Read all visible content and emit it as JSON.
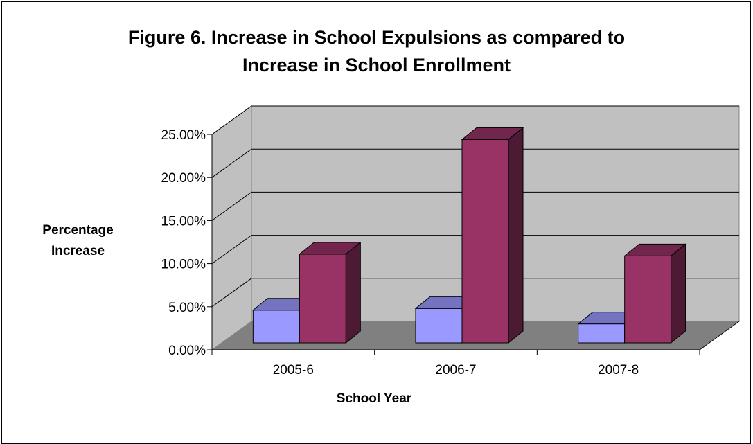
{
  "chart_data": {
    "type": "bar",
    "title": "Figure 6. Increase in School Expulsions as compared to\nIncrease in School Enrollment",
    "xlabel": "School Year",
    "ylabel": "Percentage\nIncrease",
    "categories": [
      "2005-6",
      "2006-7",
      "2007-8"
    ],
    "series": [
      {
        "values": [
          3.8,
          4.0,
          2.2
        ],
        "color": "#9999ff"
      },
      {
        "values": [
          10.3,
          23.6,
          10.1
        ],
        "color": "#993366"
      }
    ],
    "ylim": [
      0,
      25
    ],
    "yticks": [
      "0.00%",
      "5.00%",
      "10.00%",
      "15.00%",
      "20.00%",
      "25.00%"
    ],
    "grid": true,
    "style": "3d-clustered-column",
    "colors": {
      "wall": "#c0c0c0",
      "floor": "#808080",
      "grid": "#000000"
    }
  }
}
